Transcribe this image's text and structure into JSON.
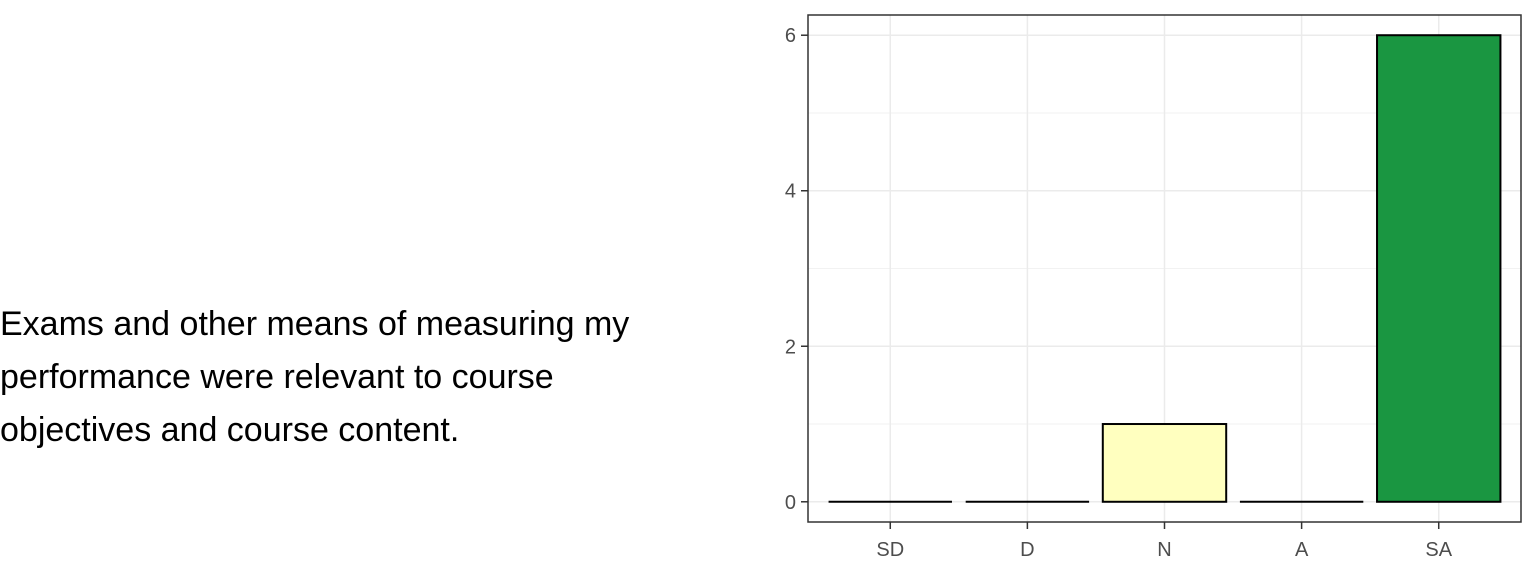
{
  "question_text": "Exams and other means of measuring my\nperformance were relevant to course\nobjectives and course content.",
  "chart_data": {
    "type": "bar",
    "categories": [
      "SD",
      "D",
      "N",
      "A",
      "SA"
    ],
    "values": [
      0,
      0,
      1,
      0,
      6
    ],
    "colors": [
      "#d7191c",
      "#fdae61",
      "#ffffbf",
      "#a6d96a",
      "#1a9641"
    ],
    "title": "",
    "xlabel": "",
    "ylabel": "",
    "ylim": [
      -0.26,
      6.26
    ],
    "yticks": [
      0,
      2,
      4,
      6
    ],
    "grid": true
  }
}
